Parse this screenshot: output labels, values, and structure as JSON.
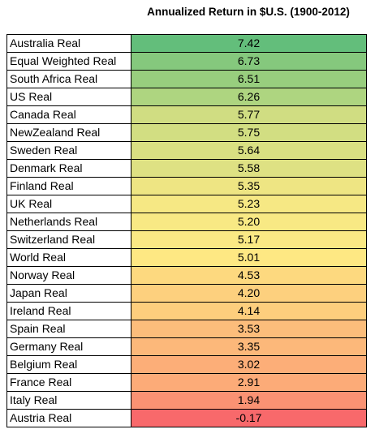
{
  "chart_data": {
    "type": "table",
    "title": "Annualized Return in $U.S. (1900-2012)",
    "rows": [
      {
        "label": "Australia Real",
        "value": "7.42",
        "color": "#63BE7B"
      },
      {
        "label": "Equal Weighted Real",
        "value": "6.73",
        "color": "#85C87D"
      },
      {
        "label": "South Africa Real",
        "value": "6.51",
        "color": "#98CE7E"
      },
      {
        "label": "US Real",
        "value": "6.26",
        "color": "#AED580"
      },
      {
        "label": "Canada Real",
        "value": "5.77",
        "color": "#D0DD82"
      },
      {
        "label": "NewZealand Real",
        "value": "5.75",
        "color": "#D2DE82"
      },
      {
        "label": "Sweden Real",
        "value": "5.64",
        "color": "#D9E082"
      },
      {
        "label": "Denmark Real",
        "value": "5.58",
        "color": "#DEE183"
      },
      {
        "label": "Finland Real",
        "value": "5.35",
        "color": "#EEE583"
      },
      {
        "label": "UK Real",
        "value": "5.23",
        "color": "#F6E884"
      },
      {
        "label": "Netherlands Real",
        "value": "5.20",
        "color": "#F8E984"
      },
      {
        "label": "Switzerland Real",
        "value": "5.17",
        "color": "#FAE984"
      },
      {
        "label": "World Real",
        "value": "5.01",
        "color": "#FEE883"
      },
      {
        "label": "Norway Real",
        "value": "4.53",
        "color": "#FDD97F"
      },
      {
        "label": "Japan Real",
        "value": "4.20",
        "color": "#FDD07E"
      },
      {
        "label": "Ireland Real",
        "value": "4.14",
        "color": "#FDCE7D"
      },
      {
        "label": "Spain Real",
        "value": "3.53",
        "color": "#FCBD7B"
      },
      {
        "label": "Germany Real",
        "value": "3.35",
        "color": "#FCB87A"
      },
      {
        "label": "Belgium Real",
        "value": "3.02",
        "color": "#FCAE78"
      },
      {
        "label": "France Real",
        "value": "2.91",
        "color": "#FCAB78"
      },
      {
        "label": "Italy Real",
        "value": "1.94",
        "color": "#FA9273"
      },
      {
        "label": "Austria Real",
        "value": "-0.17",
        "color": "#F8696B"
      }
    ]
  }
}
